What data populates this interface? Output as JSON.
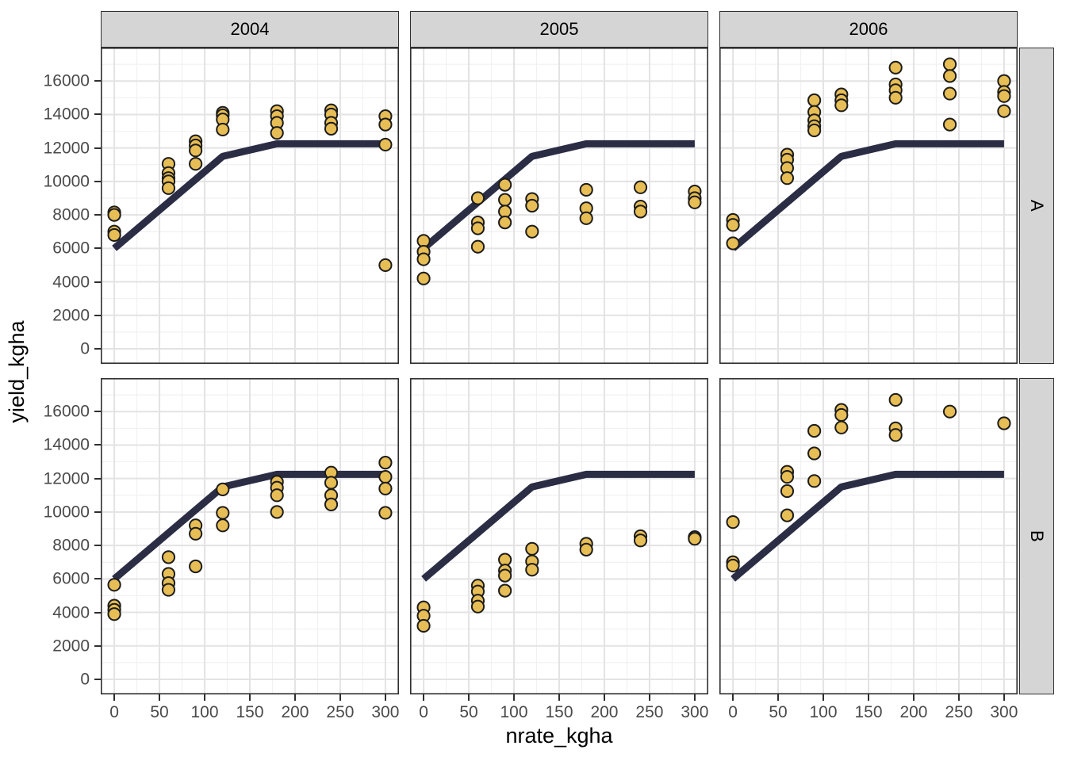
{
  "chart_data": {
    "type": "scatter",
    "xlabel": "nrate_kgha",
    "ylabel": "yield_kgha",
    "facet_cols": [
      "2004",
      "2005",
      "2006"
    ],
    "facet_rows": [
      "A",
      "B"
    ],
    "xlim": [
      -15,
      315
    ],
    "ylim": [
      -900,
      18000
    ],
    "x_major_ticks": [
      0,
      50,
      100,
      150,
      200,
      250,
      300
    ],
    "x_minor_ticks": [
      25,
      75,
      125,
      175,
      225,
      275
    ],
    "y_major_ticks": [
      0,
      2000,
      4000,
      6000,
      8000,
      10000,
      12000,
      14000,
      16000
    ],
    "y_minor_ticks": [
      1000,
      3000,
      5000,
      7000,
      9000,
      11000,
      13000,
      15000,
      17000
    ],
    "grid": true,
    "legend_position": "none",
    "fit_line": {
      "name": "linear-plateau-fit",
      "points": [
        [
          0,
          6000
        ],
        [
          120,
          11500
        ],
        [
          180,
          12250
        ],
        [
          300,
          12250
        ]
      ]
    },
    "panels": [
      {
        "row": "A",
        "col": "2004",
        "points": [
          [
            0,
            8150
          ],
          [
            0,
            8000
          ],
          [
            0,
            7000
          ],
          [
            0,
            6800
          ],
          [
            60,
            11050
          ],
          [
            60,
            10500
          ],
          [
            60,
            10200
          ],
          [
            60,
            10000
          ],
          [
            60,
            9600
          ],
          [
            90,
            12400
          ],
          [
            90,
            12150
          ],
          [
            90,
            11850
          ],
          [
            90,
            11050
          ],
          [
            120,
            14100
          ],
          [
            120,
            13950
          ],
          [
            120,
            13700
          ],
          [
            120,
            13100
          ],
          [
            180,
            14200
          ],
          [
            180,
            13900
          ],
          [
            180,
            13500
          ],
          [
            180,
            12900
          ],
          [
            240,
            14250
          ],
          [
            240,
            14000
          ],
          [
            240,
            13500
          ],
          [
            240,
            13150
          ],
          [
            300,
            13900
          ],
          [
            300,
            13400
          ],
          [
            300,
            12200
          ],
          [
            300,
            5000
          ]
        ]
      },
      {
        "row": "A",
        "col": "2005",
        "points": [
          [
            0,
            6450
          ],
          [
            0,
            5800
          ],
          [
            0,
            5350
          ],
          [
            0,
            4200
          ],
          [
            60,
            9000
          ],
          [
            60,
            7550
          ],
          [
            60,
            7200
          ],
          [
            60,
            6100
          ],
          [
            90,
            9800
          ],
          [
            90,
            8900
          ],
          [
            90,
            8200
          ],
          [
            90,
            7550
          ],
          [
            120,
            8950
          ],
          [
            120,
            8550
          ],
          [
            120,
            7000
          ],
          [
            180,
            9500
          ],
          [
            180,
            8400
          ],
          [
            180,
            7800
          ],
          [
            240,
            9650
          ],
          [
            240,
            8500
          ],
          [
            240,
            8200
          ],
          [
            300,
            9400
          ],
          [
            300,
            9000
          ],
          [
            300,
            8750
          ]
        ]
      },
      {
        "row": "A",
        "col": "2006",
        "points": [
          [
            0,
            7700
          ],
          [
            0,
            7400
          ],
          [
            0,
            6300
          ],
          [
            60,
            11600
          ],
          [
            60,
            11300
          ],
          [
            60,
            10800
          ],
          [
            60,
            10200
          ],
          [
            90,
            14850
          ],
          [
            90,
            14150
          ],
          [
            90,
            13650
          ],
          [
            90,
            13300
          ],
          [
            90,
            13050
          ],
          [
            120,
            15200
          ],
          [
            120,
            14850
          ],
          [
            120,
            14550
          ],
          [
            180,
            16800
          ],
          [
            180,
            15800
          ],
          [
            180,
            15450
          ],
          [
            180,
            15000
          ],
          [
            240,
            17000
          ],
          [
            240,
            16300
          ],
          [
            240,
            15250
          ],
          [
            240,
            13400
          ],
          [
            300,
            16000
          ],
          [
            300,
            15350
          ],
          [
            300,
            15100
          ],
          [
            300,
            14200
          ]
        ]
      },
      {
        "row": "B",
        "col": "2004",
        "points": [
          [
            0,
            5650
          ],
          [
            0,
            4400
          ],
          [
            0,
            4150
          ],
          [
            0,
            3900
          ],
          [
            60,
            7300
          ],
          [
            60,
            6300
          ],
          [
            60,
            5750
          ],
          [
            60,
            5350
          ],
          [
            90,
            9200
          ],
          [
            90,
            8700
          ],
          [
            90,
            6750
          ],
          [
            120,
            11350
          ],
          [
            120,
            9950
          ],
          [
            120,
            9200
          ],
          [
            180,
            11800
          ],
          [
            180,
            11450
          ],
          [
            180,
            11000
          ],
          [
            180,
            10000
          ],
          [
            240,
            12350
          ],
          [
            240,
            11750
          ],
          [
            240,
            11000
          ],
          [
            240,
            10450
          ],
          [
            300,
            12950
          ],
          [
            300,
            12100
          ],
          [
            300,
            11400
          ],
          [
            300,
            9950
          ]
        ]
      },
      {
        "row": "B",
        "col": "2005",
        "points": [
          [
            0,
            4300
          ],
          [
            0,
            3800
          ],
          [
            0,
            3200
          ],
          [
            60,
            5600
          ],
          [
            60,
            5250
          ],
          [
            60,
            4700
          ],
          [
            60,
            4350
          ],
          [
            90,
            7150
          ],
          [
            90,
            6500
          ],
          [
            90,
            6200
          ],
          [
            90,
            5300
          ],
          [
            120,
            7800
          ],
          [
            120,
            7050
          ],
          [
            120,
            6550
          ],
          [
            180,
            8100
          ],
          [
            180,
            7750
          ],
          [
            240,
            8550
          ],
          [
            240,
            8300
          ],
          [
            300,
            8500
          ],
          [
            300,
            8400
          ]
        ]
      },
      {
        "row": "B",
        "col": "2006",
        "points": [
          [
            0,
            9400
          ],
          [
            0,
            7000
          ],
          [
            0,
            6800
          ],
          [
            60,
            12400
          ],
          [
            60,
            12100
          ],
          [
            60,
            11250
          ],
          [
            60,
            9800
          ],
          [
            90,
            14850
          ],
          [
            90,
            13500
          ],
          [
            90,
            11850
          ],
          [
            120,
            16100
          ],
          [
            120,
            15800
          ],
          [
            120,
            15050
          ],
          [
            180,
            16700
          ],
          [
            180,
            15000
          ],
          [
            180,
            14600
          ],
          [
            240,
            16000
          ],
          [
            300,
            15300
          ]
        ]
      }
    ],
    "colors": {
      "point_fill": "#E7BD55",
      "point_stroke": "#1C1C1C",
      "fit_line": "#2B2D45",
      "grid_major": "#E3E3E3",
      "grid_minor": "#F1F1F1",
      "panel_border": "#2F2F2F",
      "panel_background": "#FFFFFF",
      "strip_fill": "#D5D5D5",
      "tick_label": "#4A4A4A",
      "axis_title": "#000000"
    }
  }
}
